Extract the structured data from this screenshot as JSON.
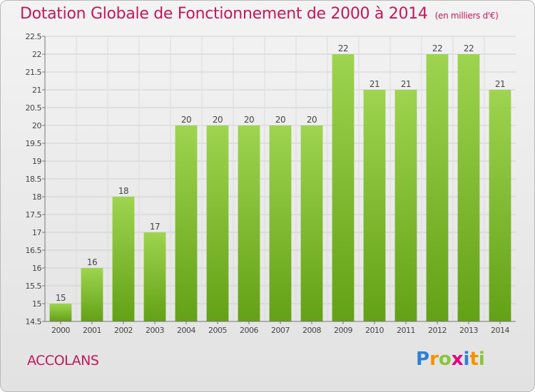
{
  "title": "Dotation Globale de Fonctionnement de 2000 à 2014",
  "unit_note": "(en milliers d'€)",
  "commune": "ACCOLANS",
  "logo": {
    "letters": [
      "P",
      "r",
      "o",
      "x",
      "i",
      "t",
      "i"
    ]
  },
  "colors": {
    "title": "#c2185b",
    "bar_top": "#9ed44f",
    "bar_bottom": "#63a116",
    "grid": "#d0d0d0"
  },
  "chart_data": {
    "type": "bar",
    "categories": [
      "2000",
      "2001",
      "2002",
      "2003",
      "2004",
      "2005",
      "2006",
      "2007",
      "2008",
      "2009",
      "2010",
      "2011",
      "2012",
      "2013",
      "2014"
    ],
    "values": [
      15,
      16,
      18,
      17,
      20,
      20,
      20,
      20,
      20,
      22,
      21,
      21,
      22,
      22,
      21
    ],
    "labels": [
      "15",
      "16",
      "18",
      "17",
      "20",
      "20",
      "20",
      "20",
      "20",
      "22",
      "21",
      "21",
      "22",
      "22",
      "21"
    ],
    "title": "Dotation Globale de Fonctionnement de 2000 à 2014",
    "xlabel": "",
    "ylabel": "",
    "ylim": [
      14.5,
      22.5
    ],
    "yticks": [
      14.5,
      15,
      15.5,
      16,
      16.5,
      17,
      17.5,
      18,
      18.5,
      19,
      19.5,
      20,
      20.5,
      21,
      21.5,
      22,
      22.5
    ],
    "ytick_labels": [
      "14.5",
      "15",
      "15.5",
      "16",
      "16.5",
      "17",
      "17.5",
      "18",
      "18.5",
      "19",
      "19.5",
      "20",
      "20.5",
      "21",
      "21.5",
      "22",
      "22.5"
    ],
    "grid": true
  }
}
